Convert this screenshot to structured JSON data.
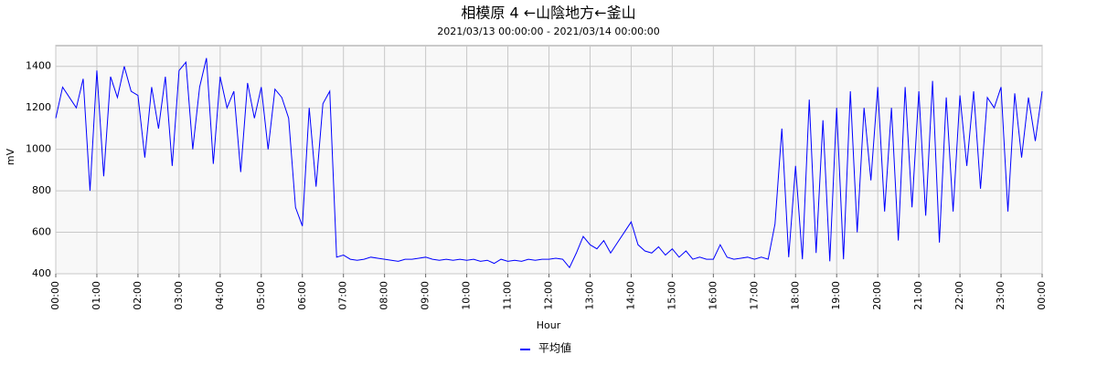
{
  "chart_data": {
    "type": "line",
    "title": "相模原 4 ←山陰地方←釜山",
    "subtitle": "2021/03/13 00:00:00 - 2021/03/14 00:00:00",
    "x_label": "Hour",
    "y_label": "mV",
    "xlim": [
      0,
      1440
    ],
    "ylim": [
      400,
      1500
    ],
    "xticks": [
      {
        "value": 0,
        "label": "00:00"
      },
      {
        "value": 60,
        "label": "01:00"
      },
      {
        "value": 120,
        "label": "02:00"
      },
      {
        "value": 180,
        "label": "03:00"
      },
      {
        "value": 240,
        "label": "04:00"
      },
      {
        "value": 300,
        "label": "05:00"
      },
      {
        "value": 360,
        "label": "06:00"
      },
      {
        "value": 420,
        "label": "07:00"
      },
      {
        "value": 480,
        "label": "08:00"
      },
      {
        "value": 540,
        "label": "09:00"
      },
      {
        "value": 600,
        "label": "10:00"
      },
      {
        "value": 660,
        "label": "11:00"
      },
      {
        "value": 720,
        "label": "12:00"
      },
      {
        "value": 780,
        "label": "13:00"
      },
      {
        "value": 840,
        "label": "14:00"
      },
      {
        "value": 900,
        "label": "15:00"
      },
      {
        "value": 960,
        "label": "16:00"
      },
      {
        "value": 1020,
        "label": "17:00"
      },
      {
        "value": 1080,
        "label": "18:00"
      },
      {
        "value": 1140,
        "label": "19:00"
      },
      {
        "value": 1200,
        "label": "20:00"
      },
      {
        "value": 1260,
        "label": "21:00"
      },
      {
        "value": 1320,
        "label": "22:00"
      },
      {
        "value": 1380,
        "label": "23:00"
      },
      {
        "value": 1440,
        "label": "00:00"
      }
    ],
    "yticks": [
      400,
      600,
      800,
      1000,
      1200,
      1400
    ],
    "grid": true,
    "legend": "bottom",
    "x": [
      0,
      10,
      20,
      30,
      40,
      50,
      60,
      70,
      80,
      90,
      100,
      110,
      120,
      130,
      140,
      150,
      160,
      170,
      180,
      190,
      200,
      210,
      220,
      230,
      240,
      250,
      260,
      270,
      280,
      290,
      300,
      310,
      320,
      330,
      340,
      350,
      360,
      370,
      380,
      390,
      400,
      410,
      420,
      430,
      440,
      450,
      460,
      470,
      480,
      490,
      500,
      510,
      520,
      530,
      540,
      550,
      560,
      570,
      580,
      590,
      600,
      610,
      620,
      630,
      640,
      650,
      660,
      670,
      680,
      690,
      700,
      710,
      720,
      730,
      740,
      750,
      760,
      770,
      780,
      790,
      800,
      810,
      820,
      830,
      840,
      850,
      860,
      870,
      880,
      890,
      900,
      910,
      920,
      930,
      940,
      950,
      960,
      970,
      980,
      990,
      1000,
      1010,
      1020,
      1030,
      1040,
      1050,
      1060,
      1070,
      1080,
      1090,
      1100,
      1110,
      1120,
      1130,
      1140,
      1150,
      1160,
      1170,
      1180,
      1190,
      1200,
      1210,
      1220,
      1230,
      1240,
      1250,
      1260,
      1270,
      1280,
      1290,
      1300,
      1310,
      1320,
      1330,
      1340,
      1350,
      1360,
      1370,
      1380,
      1390,
      1400,
      1410,
      1420,
      1430,
      1440
    ],
    "series": [
      {
        "name": "平均値",
        "color": "#0000ff",
        "values": [
          1150,
          1300,
          1250,
          1200,
          1340,
          800,
          1380,
          870,
          1350,
          1250,
          1400,
          1280,
          1260,
          960,
          1300,
          1100,
          1350,
          920,
          1380,
          1420,
          1000,
          1300,
          1440,
          930,
          1350,
          1200,
          1280,
          890,
          1320,
          1150,
          1300,
          1000,
          1290,
          1250,
          1150,
          720,
          630,
          1200,
          820,
          1220,
          1280,
          480,
          490,
          470,
          465,
          470,
          480,
          475,
          470,
          465,
          460,
          470,
          470,
          475,
          480,
          470,
          465,
          470,
          465,
          470,
          465,
          470,
          460,
          465,
          450,
          470,
          460,
          465,
          460,
          470,
          465,
          470,
          470,
          475,
          470,
          430,
          500,
          580,
          540,
          520,
          560,
          500,
          550,
          600,
          650,
          540,
          510,
          500,
          530,
          490,
          520,
          480,
          510,
          470,
          480,
          470,
          470,
          540,
          480,
          470,
          475,
          480,
          470,
          480,
          470,
          640,
          1100,
          480,
          920,
          470,
          1240,
          500,
          1140,
          460,
          1200,
          470,
          1280,
          600,
          1200,
          850,
          1300,
          700,
          1200,
          560,
          1300,
          720,
          1280,
          680,
          1330,
          550,
          1250,
          700,
          1260,
          920,
          1280,
          810,
          1250,
          1200,
          1300,
          700,
          1270,
          960,
          1250,
          1040,
          1280
        ]
      }
    ]
  }
}
